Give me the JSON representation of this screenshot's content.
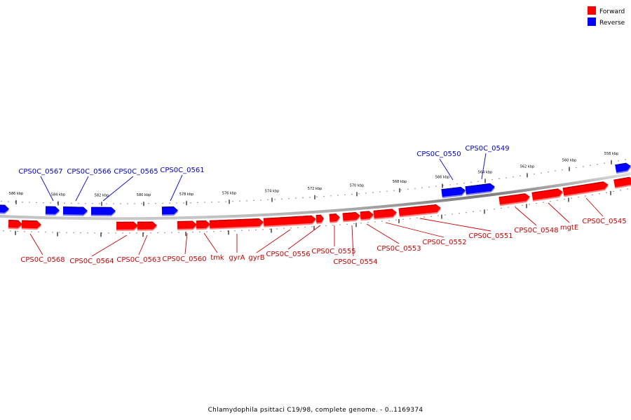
{
  "legend": {
    "items": [
      {
        "label": "Forward",
        "color": "#ff0000"
      },
      {
        "label": "Reverse",
        "color": "#0000ff"
      }
    ]
  },
  "caption": "Chlamydophila psittaci C19/98, complete genome. - 0..1169374",
  "scale": {
    "ticks": [
      "586 kbp",
      "584 kbp",
      "582 kbp",
      "580 kbp",
      "578 kbp",
      "576 kbp",
      "574 kbp",
      "572 kbp",
      "570 kbp",
      "568 kbp",
      "566 kbp",
      "564 kbp",
      "562 kbp",
      "560 kbp",
      "558 kbp"
    ]
  },
  "colors": {
    "forward": "#ff0000",
    "forward_dark": "#b00000",
    "forward_light": "#ff8080",
    "reverse": "#0000ff",
    "reverse_dark": "#00008a",
    "reverse_light": "#8080ff",
    "backbone": "#808080",
    "label_forward": "#cc0000",
    "label_reverse": "#0000cc"
  },
  "genes": {
    "reverse": [
      "CPS0C_0567",
      "CPS0C_0566",
      "CPS0C_0565",
      "CPS0C_0561",
      "CPS0C_0550",
      "CPS0C_0549"
    ],
    "forward": [
      "CPS0C_0568",
      "CPS0C_0564",
      "CPS0C_0563",
      "CPS0C_0560",
      "tmk",
      "gyrA",
      "gyrB",
      "CPS0C_0556",
      "CPS0C_0555",
      "CPS0C_0554",
      "CPS0C_0553",
      "CPS0C_0552",
      "CPS0C_0551",
      "CPS0C_0548",
      "mgtE",
      "CPS0C_0545"
    ]
  }
}
